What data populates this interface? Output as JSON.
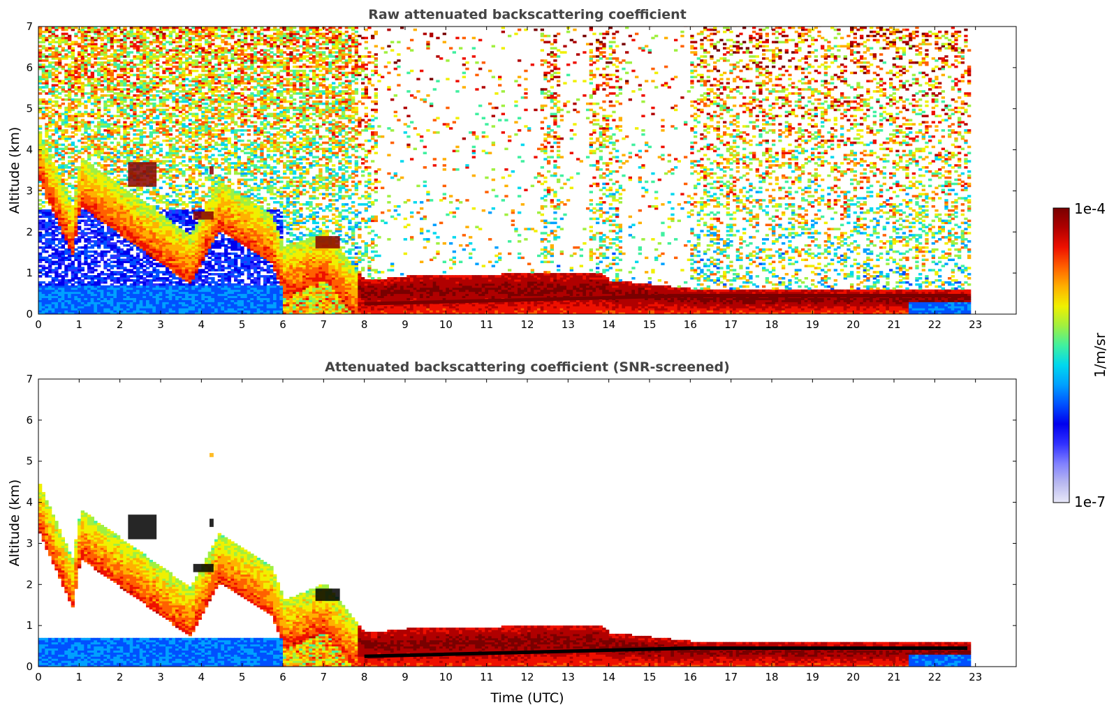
{
  "chart_data": [
    {
      "type": "heatmap",
      "title": "Raw attenuated backscattering coefficient",
      "xlabel": "",
      "ylabel": "Altitude (km)",
      "xlim": [
        0,
        24
      ],
      "ylim": [
        0,
        7
      ],
      "xticks": [
        "0",
        "1",
        "2",
        "3",
        "4",
        "5",
        "6",
        "7",
        "8",
        "9",
        "10",
        "11",
        "12",
        "13",
        "14",
        "15",
        "16",
        "17",
        "18",
        "19",
        "20",
        "21",
        "22",
        "23"
      ],
      "yticks": [
        "0",
        "1",
        "2",
        "3",
        "4",
        "5",
        "6",
        "7"
      ],
      "data_end_time": 22.8,
      "features": {
        "aerosol_layer_top_km": [
          [
            0,
            4.4
          ],
          [
            0.8,
            2.6
          ],
          [
            1,
            3.8
          ],
          [
            3.7,
            1.9
          ],
          [
            4.4,
            3.2
          ],
          [
            5.7,
            2.4
          ],
          [
            6,
            1.6
          ],
          [
            7,
            2.0
          ],
          [
            8,
            0.8
          ],
          [
            9,
            0.9
          ],
          [
            13.7,
            1.0
          ],
          [
            14,
            0.8
          ],
          [
            16,
            0.6
          ],
          [
            20,
            0.55
          ],
          [
            22.8,
            0.55
          ]
        ],
        "boundary_layer_top_km": [
          [
            0,
            0.7
          ],
          [
            6,
            0.7
          ]
        ],
        "elevated_layers": [
          {
            "t0": 2.2,
            "t1": 2.9,
            "z0": 3.1,
            "z1": 3.7,
            "level": "max"
          },
          {
            "t0": 3.8,
            "t1": 4.3,
            "z0": 2.3,
            "z1": 2.5,
            "level": "max"
          },
          {
            "t0": 4.2,
            "t1": 4.3,
            "z0": 3.4,
            "z1": 3.6,
            "level": "max"
          },
          {
            "t0": 4.2,
            "t1": 4.3,
            "z0": 5.1,
            "z1": 5.2,
            "level": "high"
          },
          {
            "t0": 6.8,
            "t1": 7.4,
            "z0": 1.6,
            "z1": 1.9,
            "level": "max"
          }
        ],
        "cloud_base_km": [
          [
            8,
            0.2
          ],
          [
            16,
            0.4
          ],
          [
            22.8,
            0.4
          ]
        ]
      }
    },
    {
      "type": "heatmap",
      "title": "Attenuated backscattering coefficient (SNR-screened)",
      "xlabel": "Time (UTC)",
      "ylabel": "Altitude (km)",
      "xlim": [
        0,
        24
      ],
      "ylim": [
        0,
        7
      ],
      "xticks": [
        "0",
        "1",
        "2",
        "3",
        "4",
        "5",
        "6",
        "7",
        "8",
        "9",
        "10",
        "11",
        "12",
        "13",
        "14",
        "15",
        "16",
        "17",
        "18",
        "19",
        "20",
        "21",
        "22",
        "23"
      ],
      "yticks": [
        "0",
        "1",
        "2",
        "3",
        "4",
        "5",
        "6",
        "7"
      ],
      "data_end_time": 22.8
    }
  ],
  "colorbar": {
    "label": "1/m/sr",
    "max_label": "1e-4",
    "min_label": "1e-7",
    "scale": "log",
    "range": [
      1e-07,
      0.0001
    ],
    "colors": [
      "#e8e8f8",
      "#b8b8f0",
      "#8080ff",
      "#3030ff",
      "#0000ee",
      "#0050ff",
      "#00a0ff",
      "#00d8ee",
      "#40f0a0",
      "#a0f040",
      "#f0f000",
      "#ffb000",
      "#ff6000",
      "#ee1000",
      "#b00000",
      "#780000"
    ]
  }
}
